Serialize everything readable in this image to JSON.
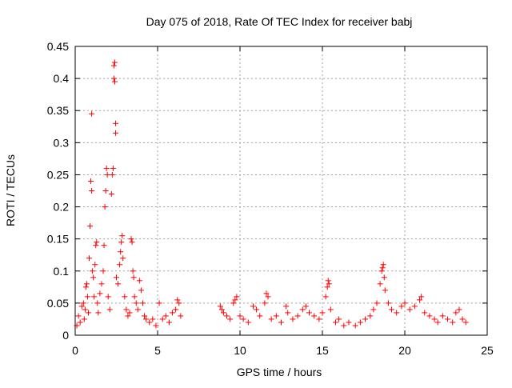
{
  "chart_data": {
    "type": "scatter",
    "title": "Day 075 of 2018, Rate Of TEC Index for receiver babj",
    "xlabel": "GPS time / hours",
    "ylabel": "ROTI / TECUs",
    "xlim": [
      0,
      25
    ],
    "ylim": [
      0,
      0.45
    ],
    "xticks": [
      0,
      5,
      10,
      15,
      20,
      25
    ],
    "xtick_labels": [
      "0",
      "5",
      "10",
      "15",
      "20",
      "25"
    ],
    "yticks": [
      0,
      0.05,
      0.1,
      0.15,
      0.2,
      0.25,
      0.3,
      0.35,
      0.4,
      0.45
    ],
    "ytick_labels": [
      "0",
      "0.05",
      "0.1",
      "0.15",
      "0.2",
      "0.25",
      "0.3",
      "0.35",
      "0.4",
      "0.45"
    ],
    "grid": true,
    "marker": "+",
    "color": "#ff0000",
    "series": [
      {
        "points": [
          [
            0.1,
            0.015
          ],
          [
            0.2,
            0.03
          ],
          [
            0.3,
            0.02
          ],
          [
            0.4,
            0.045
          ],
          [
            0.5,
            0.05
          ],
          [
            0.55,
            0.025
          ],
          [
            0.6,
            0.04
          ],
          [
            0.65,
            0.075
          ],
          [
            0.7,
            0.08
          ],
          [
            0.75,
            0.06
          ],
          [
            0.8,
            0.035
          ],
          [
            0.85,
            0.12
          ],
          [
            0.9,
            0.17
          ],
          [
            0.95,
            0.24
          ],
          [
            1.0,
            0.225
          ],
          [
            1.0,
            0.345
          ],
          [
            1.05,
            0.1
          ],
          [
            1.1,
            0.09
          ],
          [
            1.15,
            0.06
          ],
          [
            1.2,
            0.11
          ],
          [
            1.25,
            0.14
          ],
          [
            1.3,
            0.145
          ],
          [
            1.35,
            0.05
          ],
          [
            1.4,
            0.035
          ],
          [
            1.5,
            0.065
          ],
          [
            1.6,
            0.08
          ],
          [
            1.7,
            0.1
          ],
          [
            1.75,
            0.14
          ],
          [
            1.8,
            0.2
          ],
          [
            1.85,
            0.225
          ],
          [
            1.9,
            0.26
          ],
          [
            1.95,
            0.25
          ],
          [
            2.0,
            0.06
          ],
          [
            2.1,
            0.04
          ],
          [
            2.2,
            0.22
          ],
          [
            2.25,
            0.25
          ],
          [
            2.3,
            0.26
          ],
          [
            2.35,
            0.4
          ],
          [
            2.35,
            0.42
          ],
          [
            2.4,
            0.425
          ],
          [
            2.4,
            0.395
          ],
          [
            2.45,
            0.33
          ],
          [
            2.45,
            0.315
          ],
          [
            2.5,
            0.09
          ],
          [
            2.6,
            0.08
          ],
          [
            2.7,
            0.11
          ],
          [
            2.75,
            0.13
          ],
          [
            2.8,
            0.145
          ],
          [
            2.85,
            0.155
          ],
          [
            2.9,
            0.12
          ],
          [
            3.0,
            0.06
          ],
          [
            3.1,
            0.04
          ],
          [
            3.2,
            0.03
          ],
          [
            3.3,
            0.035
          ],
          [
            3.4,
            0.15
          ],
          [
            3.45,
            0.145
          ],
          [
            3.5,
            0.1
          ],
          [
            3.55,
            0.09
          ],
          [
            3.6,
            0.06
          ],
          [
            3.7,
            0.05
          ],
          [
            3.8,
            0.04
          ],
          [
            3.9,
            0.085
          ],
          [
            4.0,
            0.07
          ],
          [
            4.1,
            0.05
          ],
          [
            4.2,
            0.03
          ],
          [
            4.3,
            0.025
          ],
          [
            4.5,
            0.02
          ],
          [
            4.7,
            0.025
          ],
          [
            4.9,
            0.015
          ],
          [
            5.1,
            0.05
          ],
          [
            5.3,
            0.025
          ],
          [
            5.5,
            0.03
          ],
          [
            5.7,
            0.02
          ],
          [
            5.9,
            0.035
          ],
          [
            6.1,
            0.04
          ],
          [
            6.2,
            0.055
          ],
          [
            6.3,
            0.05
          ],
          [
            6.4,
            0.03
          ]
        ]
      },
      {
        "points": [
          [
            8.8,
            0.045
          ],
          [
            8.9,
            0.04
          ],
          [
            9.0,
            0.035
          ],
          [
            9.2,
            0.03
          ],
          [
            9.4,
            0.025
          ],
          [
            9.6,
            0.05
          ],
          [
            9.7,
            0.055
          ],
          [
            9.8,
            0.06
          ],
          [
            10.0,
            0.03
          ],
          [
            10.2,
            0.025
          ],
          [
            10.5,
            0.02
          ],
          [
            10.8,
            0.045
          ],
          [
            11.0,
            0.04
          ],
          [
            11.2,
            0.03
          ],
          [
            11.5,
            0.05
          ],
          [
            11.6,
            0.065
          ],
          [
            11.7,
            0.06
          ],
          [
            11.9,
            0.025
          ],
          [
            12.2,
            0.03
          ],
          [
            12.5,
            0.02
          ],
          [
            12.8,
            0.045
          ],
          [
            12.9,
            0.035
          ],
          [
            13.2,
            0.025
          ],
          [
            13.5,
            0.03
          ],
          [
            13.8,
            0.04
          ],
          [
            14.0,
            0.045
          ],
          [
            14.2,
            0.035
          ],
          [
            14.5,
            0.03
          ],
          [
            14.8,
            0.025
          ],
          [
            15.0,
            0.035
          ],
          [
            15.2,
            0.06
          ],
          [
            15.3,
            0.075
          ],
          [
            15.35,
            0.085
          ],
          [
            15.4,
            0.08
          ],
          [
            15.5,
            0.04
          ],
          [
            15.8,
            0.02
          ],
          [
            16.0,
            0.025
          ],
          [
            16.3,
            0.015
          ],
          [
            16.6,
            0.02
          ],
          [
            17.0,
            0.015
          ],
          [
            17.3,
            0.02
          ],
          [
            17.6,
            0.025
          ],
          [
            17.9,
            0.03
          ],
          [
            18.1,
            0.04
          ],
          [
            18.3,
            0.05
          ],
          [
            18.5,
            0.08
          ],
          [
            18.6,
            0.1
          ],
          [
            18.65,
            0.105
          ],
          [
            18.7,
            0.11
          ],
          [
            18.75,
            0.09
          ],
          [
            18.8,
            0.07
          ],
          [
            19.0,
            0.05
          ],
          [
            19.2,
            0.04
          ],
          [
            19.5,
            0.035
          ],
          [
            19.8,
            0.045
          ],
          [
            20.0,
            0.05
          ],
          [
            20.3,
            0.04
          ],
          [
            20.6,
            0.045
          ],
          [
            20.9,
            0.055
          ],
          [
            21.0,
            0.06
          ],
          [
            21.2,
            0.035
          ],
          [
            21.5,
            0.03
          ],
          [
            21.8,
            0.025
          ],
          [
            22.0,
            0.02
          ],
          [
            22.3,
            0.03
          ],
          [
            22.6,
            0.025
          ],
          [
            22.9,
            0.02
          ],
          [
            23.1,
            0.035
          ],
          [
            23.3,
            0.04
          ],
          [
            23.5,
            0.025
          ],
          [
            23.7,
            0.02
          ]
        ]
      }
    ]
  }
}
